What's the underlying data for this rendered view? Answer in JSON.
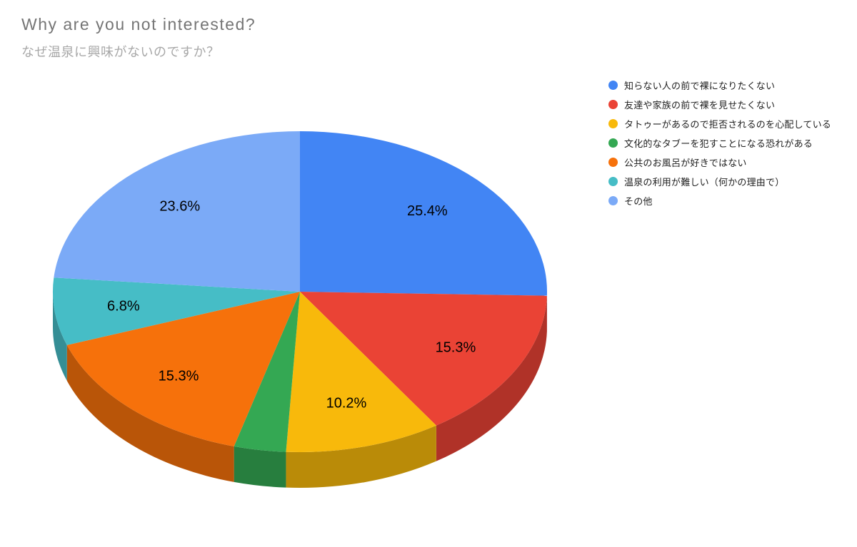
{
  "header": {
    "title": "Why are you not interested?",
    "subtitle": "なぜ温泉に興味がないのですか？"
  },
  "chart_data": {
    "type": "pie",
    "style": "3d",
    "title": "Why are you not interested?",
    "subtitle": "なぜ温泉に興味がないのですか？",
    "legend_position": "right",
    "label_format": "percent",
    "label_color": "#000000",
    "start_angle_deg": 0,
    "direction": "clockwise",
    "slices": [
      {
        "label": "知らない人の前で裸になりたくない",
        "value": 25.4,
        "pct_label": "25.4%",
        "color": "#4285F4"
      },
      {
        "label": "友達や家族の前で裸を見せたくない",
        "value": 15.3,
        "pct_label": "15.3%",
        "color": "#EA4335"
      },
      {
        "label": "タトゥーがあるので拒否されるのを心配している",
        "value": 10.2,
        "pct_label": "10.2%",
        "color": "#F8B90B"
      },
      {
        "label": "文化的なタブーを犯すことになる恐れがある",
        "value": 3.4,
        "pct_label": "",
        "color": "#34A853"
      },
      {
        "label": "公共のお風呂が好きではない",
        "value": 15.3,
        "pct_label": "15.3%",
        "color": "#F6710B"
      },
      {
        "label": "温泉の利用が難しい（何かの理由で）",
        "value": 6.8,
        "pct_label": "6.8%",
        "color": "#46BDC6"
      },
      {
        "label": "その他",
        "value": 23.6,
        "pct_label": "23.6%",
        "color": "#7BAAF7"
      }
    ]
  }
}
